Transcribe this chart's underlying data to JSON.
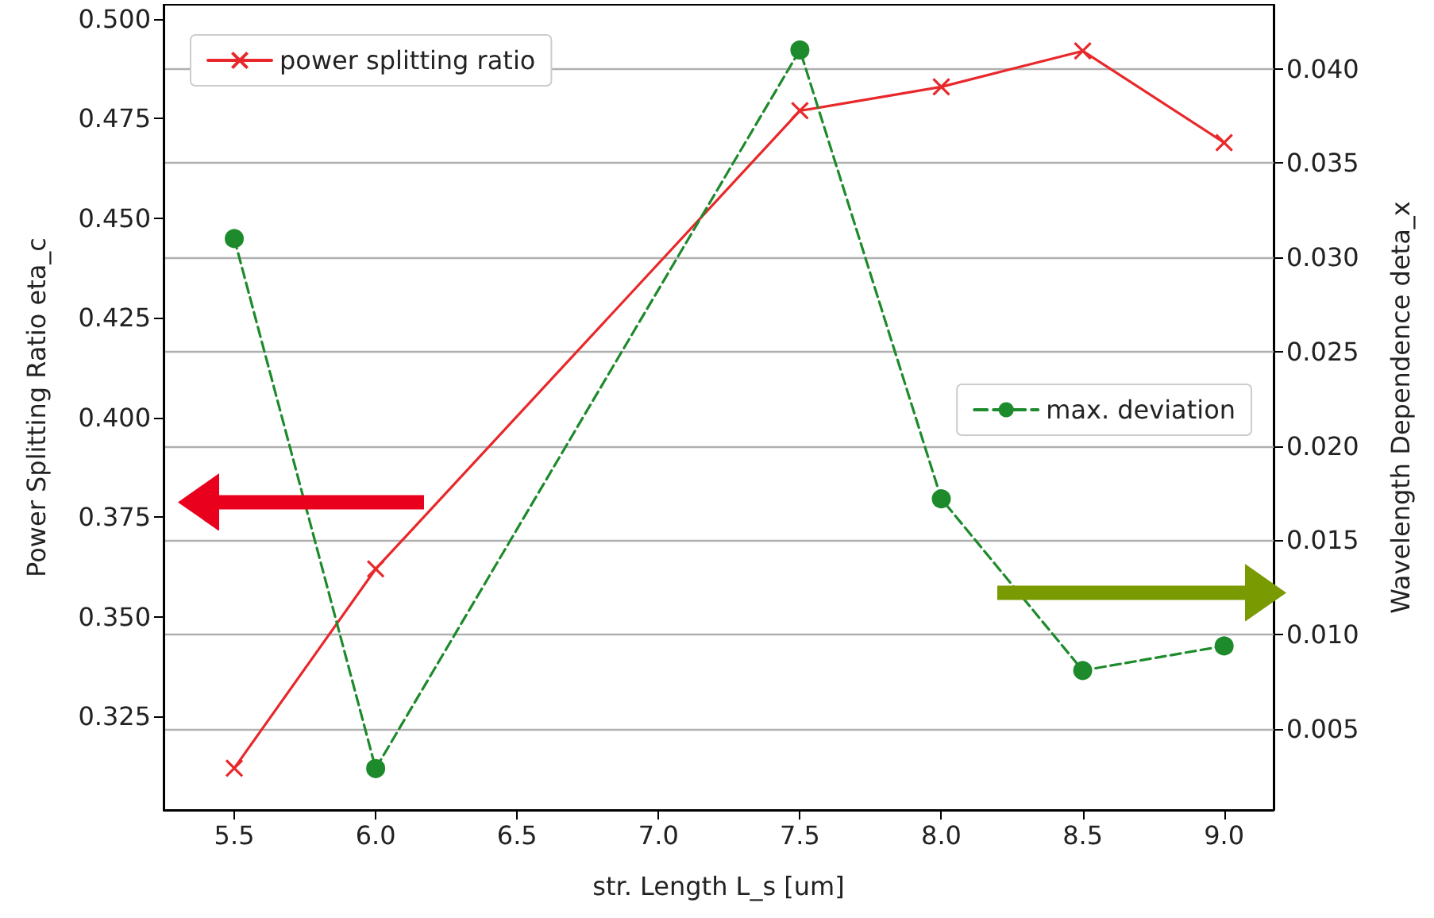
{
  "chart_data": {
    "type": "line",
    "xlabel": "str. Length L_s [um]",
    "ylabel": "Power Splitting Ratio eta_c",
    "y2label": "Wavelength Dependence deta_x",
    "x": [
      5.5,
      6.0,
      7.5,
      8.0,
      8.5,
      9.0
    ],
    "xlim": [
      5.25,
      9.175
    ],
    "xticks": [
      5.5,
      {
        "value": 6,
        "label": "6.0"
      },
      6.5,
      {
        "value": 7,
        "label": "7.0"
      },
      7.5,
      {
        "value": 8,
        "label": "8.0"
      },
      8.5,
      {
        "value": 9,
        "label": "9.0"
      }
    ],
    "ylim": [
      0.3015,
      0.5036
    ],
    "yticks": [
      0.325,
      {
        "value": 0.35,
        "label": "0.350"
      },
      0.375,
      {
        "value": 0.4,
        "label": "0.400"
      },
      0.425,
      {
        "value": 0.45,
        "label": "0.450"
      },
      0.475,
      {
        "value": 0.5,
        "label": "0.500"
      }
    ],
    "y2lim": [
      0.0007,
      0.0434
    ],
    "y2ticks": [
      0.005,
      {
        "value": 0.01,
        "label": "0.010"
      },
      0.015,
      {
        "value": 0.02,
        "label": "0.020"
      },
      0.025,
      {
        "value": 0.03,
        "label": "0.030"
      },
      0.035,
      {
        "value": 0.04,
        "label": "0.040"
      }
    ],
    "grid": "y",
    "legend": "top left",
    "series": [
      {
        "name": "power splitting ratio",
        "color": "#e8282b",
        "values": [
          0.312,
          0.362,
          0.477,
          0.483,
          0.492,
          0.469
        ],
        "marker": "cross",
        "line_style": "solid"
      },
      {
        "name": "max. deviation",
        "color": "#1d8a2b",
        "values": [
          0.031,
          0.0029,
          0.041,
          0.0172,
          0.0081,
          0.0094
        ],
        "axis": "y2",
        "marker": "circle",
        "line_style": "dashed"
      }
    ]
  }
}
